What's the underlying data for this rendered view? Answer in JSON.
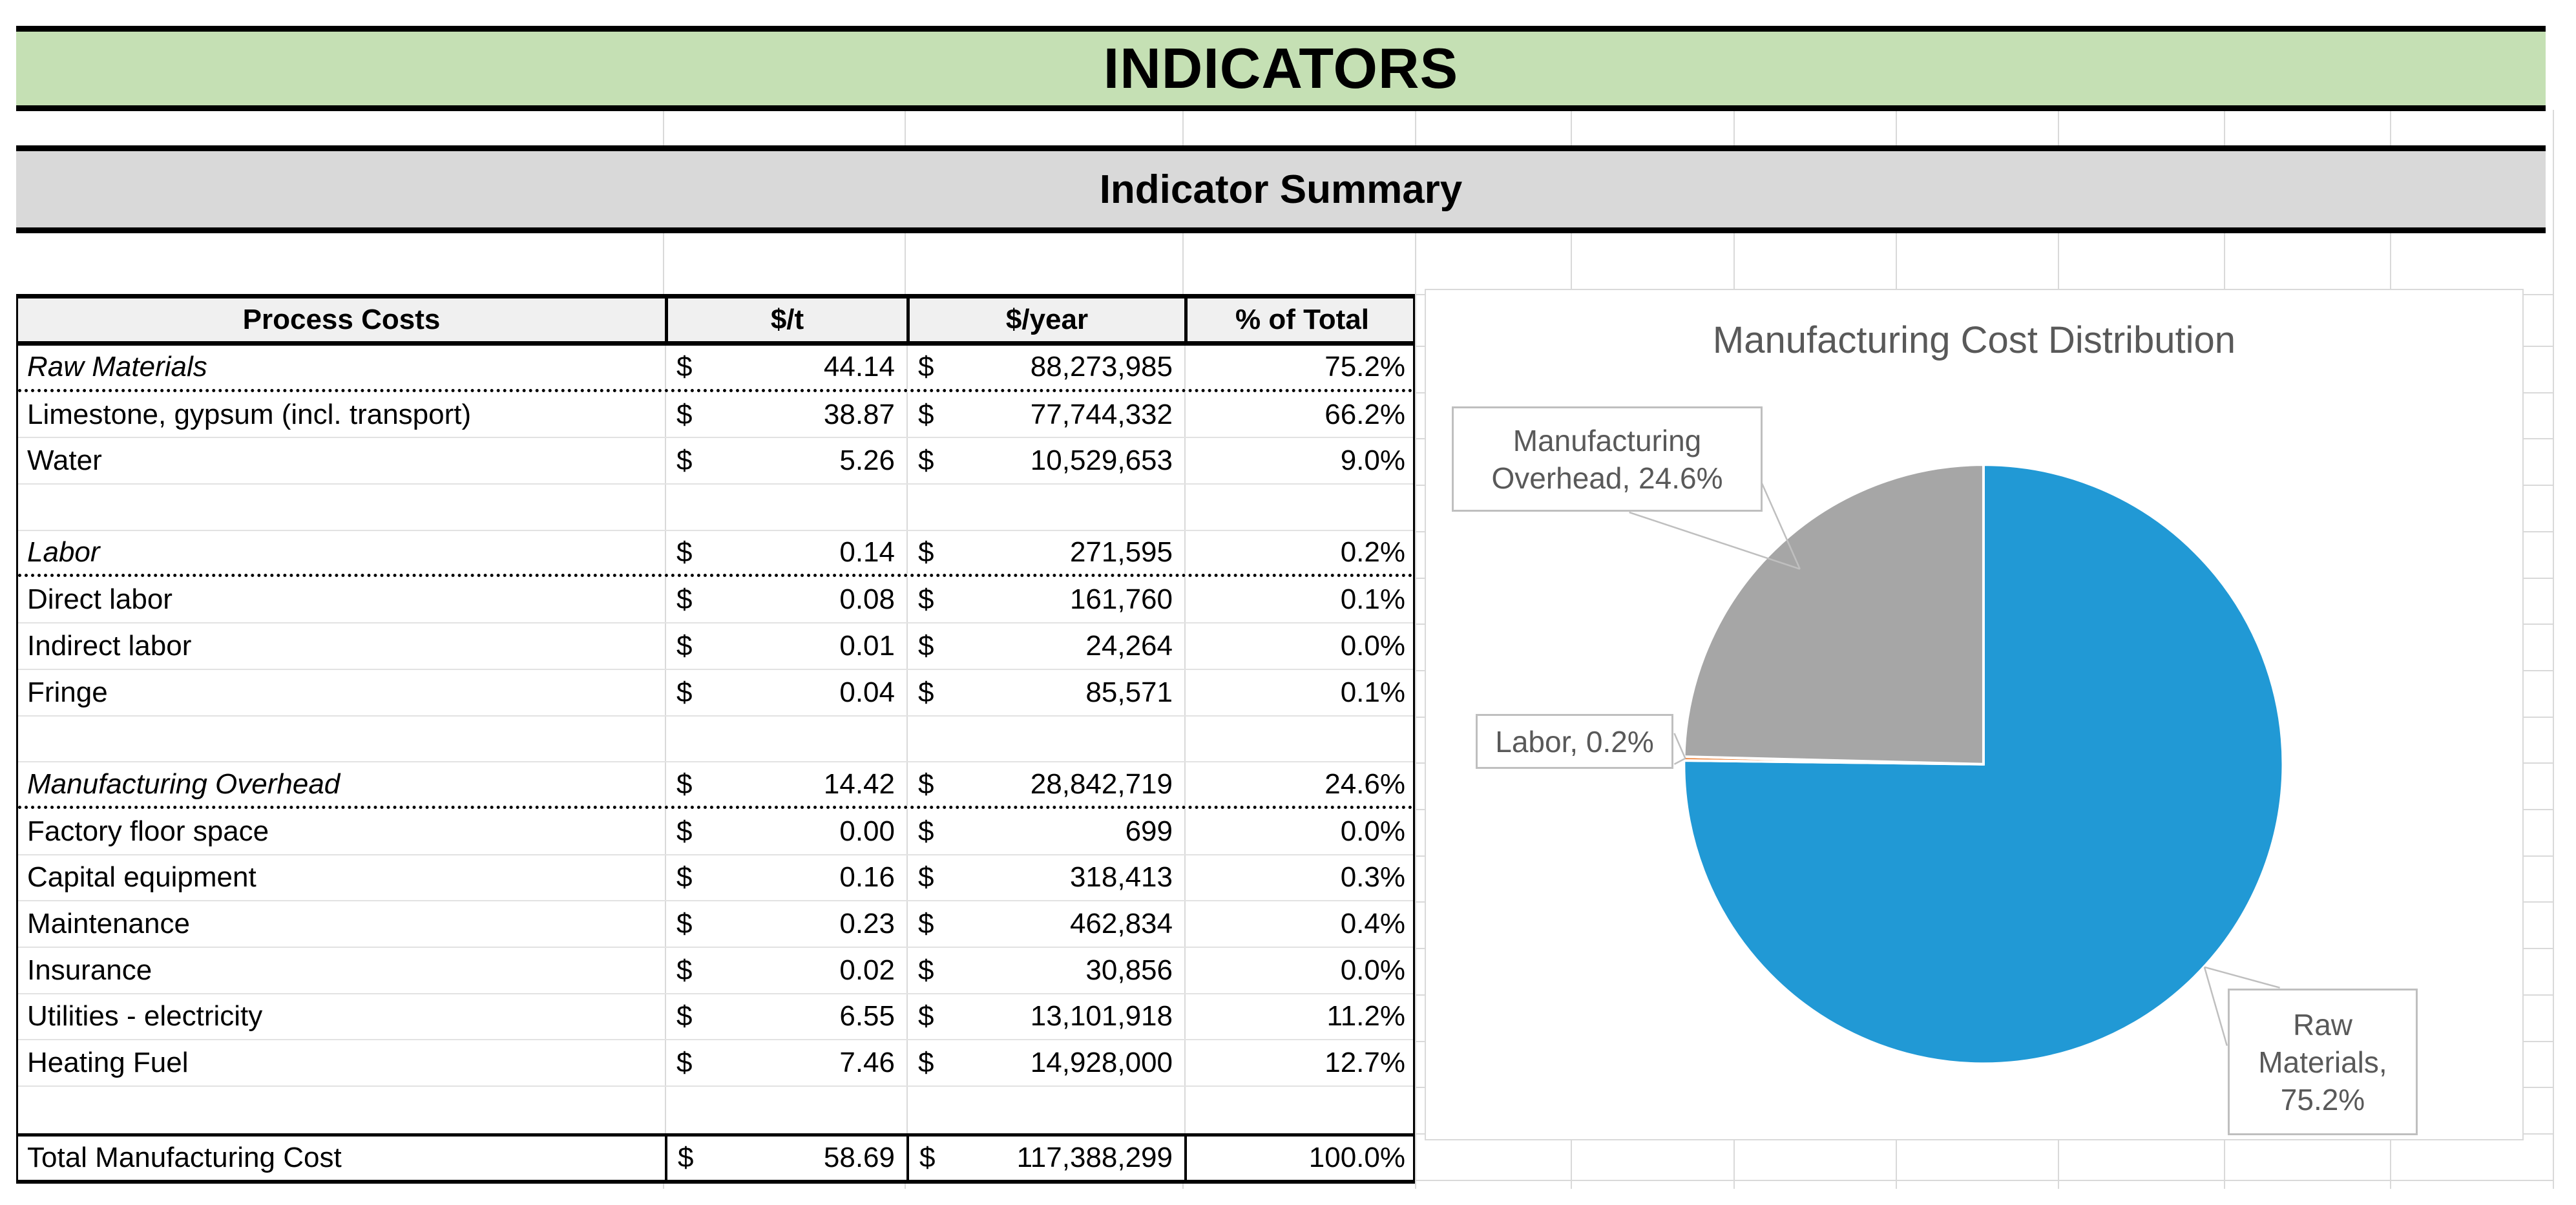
{
  "banners": {
    "title": "INDICATORS",
    "summary": "Indicator Summary"
  },
  "table": {
    "headers": [
      "Process Costs",
      "$/t",
      "$/year",
      "% of Total"
    ],
    "currency": "$",
    "rows": [
      {
        "label": "Raw Materials",
        "per_ton": "44.14",
        "per_year": "88,273,985",
        "pct": "75.2%",
        "style": "section",
        "rule": "dotted"
      },
      {
        "label": "Limestone, gypsum (incl. transport)",
        "per_ton": "38.87",
        "per_year": "77,744,332",
        "pct": "66.2%",
        "style": "item"
      },
      {
        "label": "Water",
        "per_ton": "5.26",
        "per_year": "10,529,653",
        "pct": "9.0%",
        "style": "item"
      },
      {
        "style": "empty"
      },
      {
        "label": "Labor",
        "per_ton": "0.14",
        "per_year": "271,595",
        "pct": "0.2%",
        "style": "section",
        "rule": "dotted"
      },
      {
        "label": "Direct labor",
        "per_ton": "0.08",
        "per_year": "161,760",
        "pct": "0.1%",
        "style": "item"
      },
      {
        "label": "Indirect labor",
        "per_ton": "0.01",
        "per_year": "24,264",
        "pct": "0.0%",
        "style": "item"
      },
      {
        "label": "Fringe",
        "per_ton": "0.04",
        "per_year": "85,571",
        "pct": "0.1%",
        "style": "item"
      },
      {
        "style": "empty"
      },
      {
        "label": "Manufacturing Overhead",
        "per_ton": "14.42",
        "per_year": "28,842,719",
        "pct": "24.6%",
        "style": "section",
        "rule": "dotted"
      },
      {
        "label": "Factory floor space",
        "per_ton": "0.00",
        "per_year": "699",
        "pct": "0.0%",
        "style": "item"
      },
      {
        "label": "Capital equipment",
        "per_ton": "0.16",
        "per_year": "318,413",
        "pct": "0.3%",
        "style": "item"
      },
      {
        "label": "Maintenance",
        "per_ton": "0.23",
        "per_year": "462,834",
        "pct": "0.4%",
        "style": "item"
      },
      {
        "label": "Insurance",
        "per_ton": "0.02",
        "per_year": "30,856",
        "pct": "0.0%",
        "style": "item"
      },
      {
        "label": "Utilities - electricity",
        "per_ton": "6.55",
        "per_year": "13,101,918",
        "pct": "11.2%",
        "style": "item"
      },
      {
        "label": "Heating Fuel",
        "per_ton": "7.46",
        "per_year": "14,928,000",
        "pct": "12.7%",
        "style": "item"
      },
      {
        "style": "empty",
        "pretotal": true
      },
      {
        "label": "Total Manufacturing Cost",
        "per_ton": "58.69",
        "per_year": "117,388,299",
        "pct": "100.0%",
        "style": "total"
      }
    ]
  },
  "chart_data": {
    "type": "pie",
    "title": "Manufacturing Cost Distribution",
    "categories": [
      "Raw Materials",
      "Labor",
      "Manufacturing Overhead"
    ],
    "values": [
      75.2,
      0.2,
      24.6
    ],
    "unit": "percent",
    "colors": [
      "#2199d5",
      "#ed7d31",
      "#a6a6a6"
    ],
    "start_angle_deg": 0,
    "direction": "clockwise",
    "legend": "none",
    "data_labels": [
      {
        "slice": "Raw Materials",
        "text": "Raw Materials, 75.2%",
        "lines": [
          "Raw",
          "Materials,",
          "75.2%"
        ]
      },
      {
        "slice": "Labor",
        "text": "Labor, 0.2%",
        "lines": [
          "Labor, 0.2%"
        ]
      },
      {
        "slice": "Manufacturing Overhead",
        "text": "Manufacturing Overhead, 24.6%",
        "lines": [
          "Manufacturing",
          "Overhead, 24.6%"
        ]
      }
    ]
  },
  "colors": {
    "banner_green": "#c5e0b4",
    "banner_gray": "#d9d9d9",
    "table_header_fill": "#f0f0f0",
    "chart_text": "#595959",
    "callout_border": "#bfbfbf",
    "grid_line": "#d9d9d9",
    "pie_blue": "#2199d5",
    "pie_orange": "#ed7d31",
    "pie_gray": "#a6a6a6"
  }
}
